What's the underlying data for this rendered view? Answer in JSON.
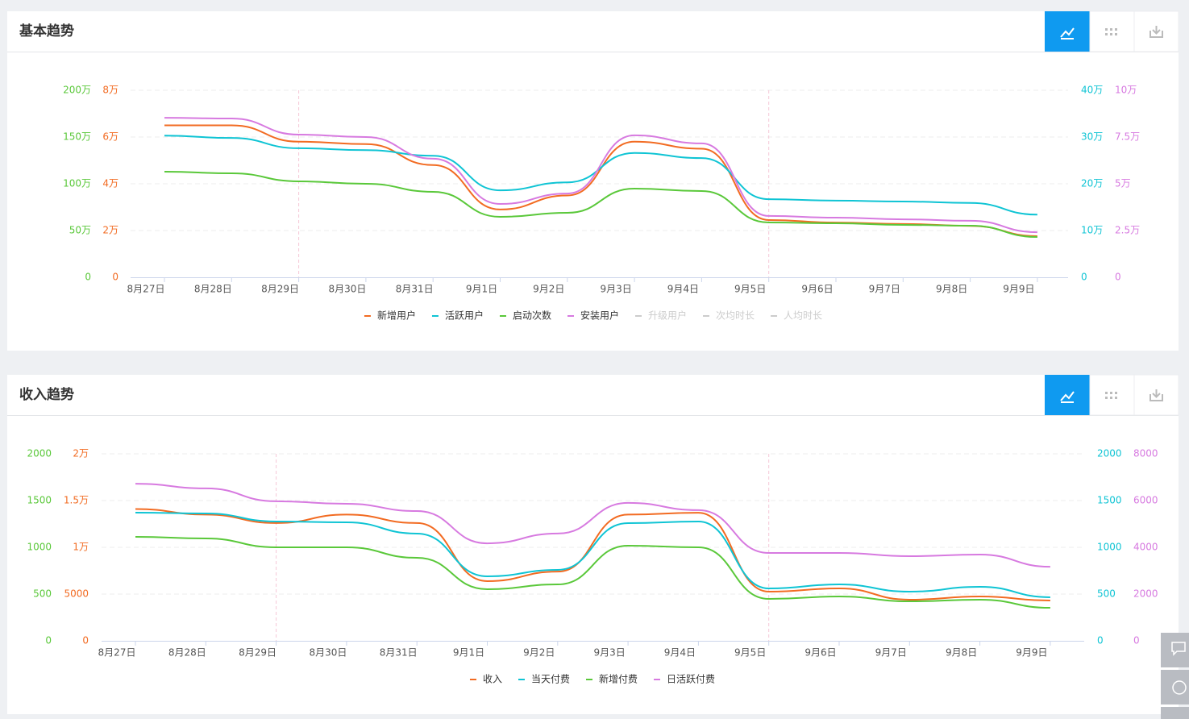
{
  "chart_data": [
    {
      "type": "line",
      "title": "基本趋势",
      "categories": [
        "8月27日",
        "8月28日",
        "8月29日",
        "8月30日",
        "8月31日",
        "9月1日",
        "9月2日",
        "9月3日",
        "9月4日",
        "9月5日",
        "9月6日",
        "9月7日",
        "9月8日",
        "9月9日"
      ],
      "ylim": [
        0,
        2000000
      ],
      "yticks": [
        0,
        {
          "value": 500000,
          "label": "50万"
        },
        {
          "value": 1000000,
          "label": "100万"
        },
        {
          "value": 1500000,
          "label": "150万"
        },
        {
          "value": 2000000,
          "label": "200万"
        }
      ],
      "y3lim": [
        0,
        80000
      ],
      "y3ticks": [
        0,
        {
          "value": 20000,
          "label": "2万"
        },
        {
          "value": 40000,
          "label": "4万"
        },
        {
          "value": 60000,
          "label": "6万"
        },
        {
          "value": 80000,
          "label": "8万"
        }
      ],
      "y2lim": [
        0,
        400000
      ],
      "y2ticks": [
        0,
        {
          "value": 100000,
          "label": "10万"
        },
        {
          "value": 200000,
          "label": "20万"
        },
        {
          "value": 300000,
          "label": "30万"
        },
        {
          "value": 400000,
          "label": "40万"
        }
      ],
      "y4lim": [
        0,
        100000
      ],
      "y4ticks": [
        0,
        {
          "value": 25000,
          "label": "2.5万"
        },
        {
          "value": 50000,
          "label": "5万"
        },
        {
          "value": 75000,
          "label": "7.5万"
        },
        {
          "value": 100000,
          "label": "10万"
        }
      ],
      "grid": true,
      "series": [
        {
          "name": "新增用户",
          "color": "#f26b22",
          "axis": "y3",
          "values": [
            65000,
            65000,
            58000,
            57000,
            48000,
            29000,
            35000,
            58000,
            55000,
            24500,
            23400,
            22800,
            22000,
            17600
          ]
        },
        {
          "name": "活跃用户",
          "color": "#0fc4d4",
          "axis": "y2",
          "values": [
            303000,
            298000,
            276000,
            272000,
            260000,
            186000,
            203000,
            266000,
            255000,
            167000,
            164000,
            162000,
            159000,
            134000
          ]
        },
        {
          "name": "启动次数",
          "color": "#5ac83a",
          "axis": "y",
          "values": [
            1129000,
            1112000,
            1026000,
            1000000,
            914000,
            647000,
            690000,
            948000,
            922000,
            586000,
            578000,
            560000,
            552000,
            431000
          ]
        },
        {
          "name": "安装用户",
          "color": "#d77ae0",
          "axis": "y4",
          "values": [
            85300,
            84900,
            76300,
            75000,
            63400,
            39200,
            44800,
            75900,
            71600,
            32800,
            31900,
            31000,
            30200,
            24100
          ]
        }
      ],
      "inactive_series": [
        "升级用户",
        "次均时长",
        "人均时长"
      ]
    },
    {
      "type": "line",
      "title": "收入趋势",
      "categories": [
        "8月27日",
        "8月28日",
        "8月29日",
        "8月30日",
        "8月31日",
        "9月1日",
        "9月2日",
        "9月3日",
        "9月4日",
        "9月5日",
        "9月6日",
        "9月7日",
        "9月8日",
        "9月9日"
      ],
      "ylim": [
        0,
        2000
      ],
      "yticks": [
        0,
        500,
        1000,
        1500,
        2000
      ],
      "y3lim": [
        0,
        20000
      ],
      "y3ticks": [
        0,
        5000,
        {
          "value": 10000,
          "label": "1万"
        },
        {
          "value": 15000,
          "label": "1.5万"
        },
        {
          "value": 20000,
          "label": "2万"
        }
      ],
      "y2lim": [
        0,
        2000
      ],
      "y2ticks": [
        0,
        500,
        1000,
        1500,
        2000
      ],
      "y4lim": [
        0,
        8000
      ],
      "y4ticks": [
        0,
        2000,
        4000,
        6000,
        8000
      ],
      "grid": true,
      "series": [
        {
          "name": "收入",
          "color": "#f26b22",
          "axis": "y3",
          "values": [
            14100,
            13500,
            12600,
            13500,
            12600,
            6380,
            7400,
            13500,
            13700,
            5260,
            5600,
            4400,
            4740,
            4310
          ]
        },
        {
          "name": "当天付费",
          "color": "#0fc4d4",
          "axis": "y2",
          "values": [
            1371,
            1362,
            1276,
            1267,
            1147,
            690,
            759,
            1259,
            1276,
            560,
            603,
            526,
            578,
            466
          ]
        },
        {
          "name": "新增付费",
          "color": "#5ac83a",
          "axis": "y",
          "values": [
            1112,
            1095,
            1000,
            1000,
            888,
            552,
            603,
            1017,
            1000,
            448,
            474,
            422,
            440,
            353
          ]
        },
        {
          "name": "日活跃付费",
          "color": "#d77ae0",
          "axis": "y4",
          "values": [
            6720,
            6520,
            5970,
            5860,
            5550,
            4170,
            4590,
            5900,
            5590,
            3760,
            3760,
            3620,
            3690,
            3170
          ]
        }
      ]
    }
  ]
}
